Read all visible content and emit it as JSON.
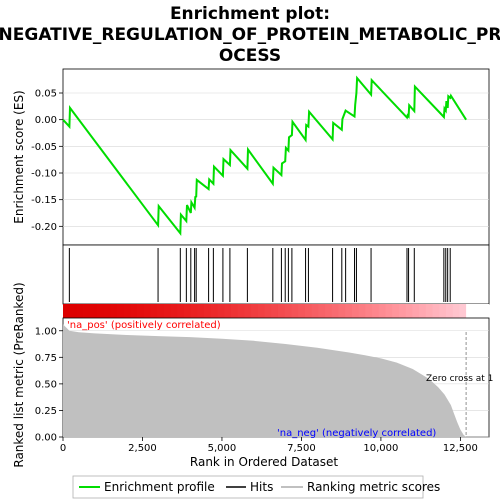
{
  "title_line1": "Enrichment plot:",
  "title_line2": "NEGATIVE_REGULATION_OF_PROTEIN_METABOLIC_PR",
  "title_line3": "OCESS",
  "colors": {
    "profile": "#00dd00",
    "hits": "#000000",
    "metric_fill": "#c0c0c0",
    "pos_text": "#ff0000",
    "neg_text": "#0000ff"
  },
  "chart_data": {
    "type": "line",
    "x_axis": {
      "label": "Rank in Ordered Dataset",
      "range": [
        0,
        13400
      ],
      "ticks": [
        0,
        2500,
        5000,
        7500,
        10000,
        12500
      ],
      "tick_labels": [
        "0",
        "2,500",
        "5,000",
        "7,500",
        "10,000",
        "12,500"
      ]
    },
    "es_panel": {
      "ylabel": "Enrichment score (ES)",
      "ylim": [
        -0.235,
        0.095
      ],
      "yticks": [
        0.05,
        0.0,
        -0.05,
        -0.1,
        -0.15,
        -0.2
      ],
      "ytick_labels": [
        "0.05",
        "0.00",
        "-0.05",
        "-0.10",
        "-0.15",
        "-0.20"
      ],
      "series": [
        {
          "name": "Enrichment profile",
          "x": [
            0,
            200,
            220,
            2990,
            3010,
            3690,
            3710,
            3880,
            3900,
            4020,
            4040,
            4140,
            4160,
            4190,
            4210,
            4580,
            4600,
            4730,
            4750,
            5030,
            5050,
            5250,
            5270,
            5800,
            5820,
            6600,
            6620,
            6870,
            6890,
            6990,
            7010,
            7090,
            7110,
            7200,
            7220,
            7630,
            7650,
            7720,
            7740,
            8480,
            8500,
            8770,
            8790,
            8890,
            8910,
            9170,
            9190,
            9230,
            9250,
            9690,
            9710,
            10820,
            10840,
            10870,
            10890,
            11050,
            11070,
            11980,
            12000,
            12040,
            12060,
            12100,
            12120,
            12180,
            12200,
            12680
          ],
          "y": [
            0,
            -0.013,
            0.022,
            -0.198,
            -0.162,
            -0.213,
            -0.178,
            -0.19,
            -0.16,
            -0.175,
            -0.155,
            -0.165,
            -0.145,
            -0.144,
            -0.113,
            -0.13,
            -0.112,
            -0.12,
            -0.088,
            -0.105,
            -0.074,
            -0.085,
            -0.057,
            -0.092,
            -0.056,
            -0.12,
            -0.09,
            -0.104,
            -0.082,
            -0.078,
            -0.053,
            -0.058,
            -0.033,
            -0.029,
            -0.004,
            -0.038,
            -0.01,
            -0.013,
            0.015,
            -0.037,
            -0.006,
            -0.019,
            0.001,
            0.017,
            0.016,
            0.006,
            0.028,
            0.05,
            0.078,
            0.047,
            0.074,
            0.004,
            0.008,
            0.006,
            0.027,
            0.016,
            0.062,
            0.005,
            0.021,
            0.017,
            0.035,
            0.022,
            0.044,
            0.041,
            0.045,
            0.0
          ]
        }
      ]
    },
    "hits": [
      200,
      2990,
      3690,
      3880,
      4020,
      4140,
      4190,
      4580,
      4730,
      5030,
      5250,
      5800,
      6600,
      6870,
      6990,
      7090,
      7200,
      7630,
      7720,
      8480,
      8770,
      8890,
      9170,
      9230,
      9690,
      10820,
      10870,
      11050,
      11980,
      12040,
      12100,
      12180
    ],
    "metric_panel": {
      "ylabel": "Ranked list metric (PreRanked)",
      "ylim": [
        0,
        1.12
      ],
      "yticks": [
        0.0,
        0.25,
        0.5,
        0.75,
        1.0
      ],
      "ytick_labels": [
        "0.00",
        "0.25",
        "0.50",
        "0.75",
        "1.00"
      ],
      "pos_label": "'na_pos' (positively correlated)",
      "neg_label": "'na_neg' (negatively correlated)",
      "zero_cross_label": "Zero cross at 1",
      "curve_x": [
        0,
        200,
        500,
        1000,
        2000,
        3000,
        4000,
        5000,
        6000,
        7000,
        8000,
        9000,
        9500,
        10000,
        10500,
        11000,
        11500,
        11800,
        12000,
        12200,
        12300,
        12400,
        12500,
        12600,
        12680
      ],
      "curve_y": [
        1.06,
        1.0,
        0.985,
        0.975,
        0.96,
        0.95,
        0.94,
        0.925,
        0.905,
        0.875,
        0.84,
        0.795,
        0.77,
        0.74,
        0.7,
        0.64,
        0.55,
        0.47,
        0.4,
        0.3,
        0.22,
        0.14,
        0.07,
        0.02,
        0.0
      ]
    },
    "legend": {
      "items": [
        "Enrichment profile",
        "Hits",
        "Ranking metric scores"
      ],
      "placement": "bottom"
    }
  }
}
